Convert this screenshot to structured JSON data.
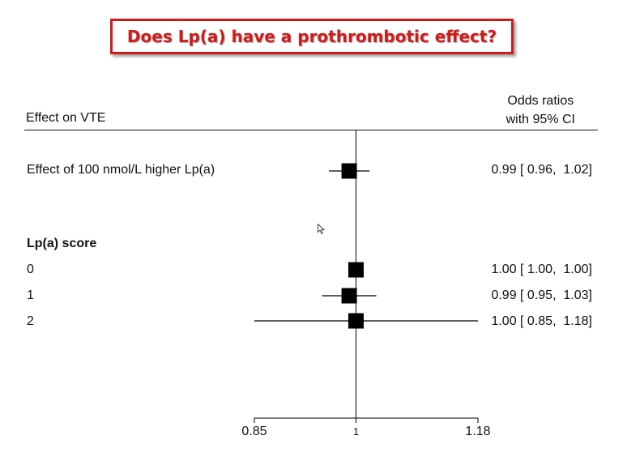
{
  "title": "Does Lp(a) have a prothrombotic effect?",
  "header": {
    "left": "Effect on VTE",
    "right_line1": "Odds ratios",
    "right_line2": "with 95% CI"
  },
  "chart_data": {
    "type": "forest",
    "reference_line": 1,
    "xlim": [
      0.85,
      1.18
    ],
    "x_ticks": [
      {
        "value": 0.85,
        "label": "0.85"
      },
      {
        "value": 1,
        "label": "1"
      },
      {
        "value": 1.18,
        "label": "1.18"
      }
    ],
    "rows": [
      {
        "label": "Effect of 100 nmol/L higher Lp(a)",
        "or": 0.99,
        "lo": 0.96,
        "hi": 1.02,
        "text": "0.99 [ 0.96,  1.02]"
      },
      {
        "label": "Lp(a) score",
        "heading": true
      },
      {
        "label": "0",
        "or": 1.0,
        "lo": 1.0,
        "hi": 1.0,
        "text": "1.00 [ 1.00,  1.00]"
      },
      {
        "label": "1",
        "or": 0.99,
        "lo": 0.95,
        "hi": 1.03,
        "text": "0.99 [ 0.95,  1.03]"
      },
      {
        "label": "2",
        "or": 1.0,
        "lo": 0.85,
        "hi": 1.18,
        "text": "1.00 [ 0.85,  1.18]"
      }
    ],
    "colors": {
      "title": "#d11a1a",
      "marks": "#000000"
    }
  }
}
